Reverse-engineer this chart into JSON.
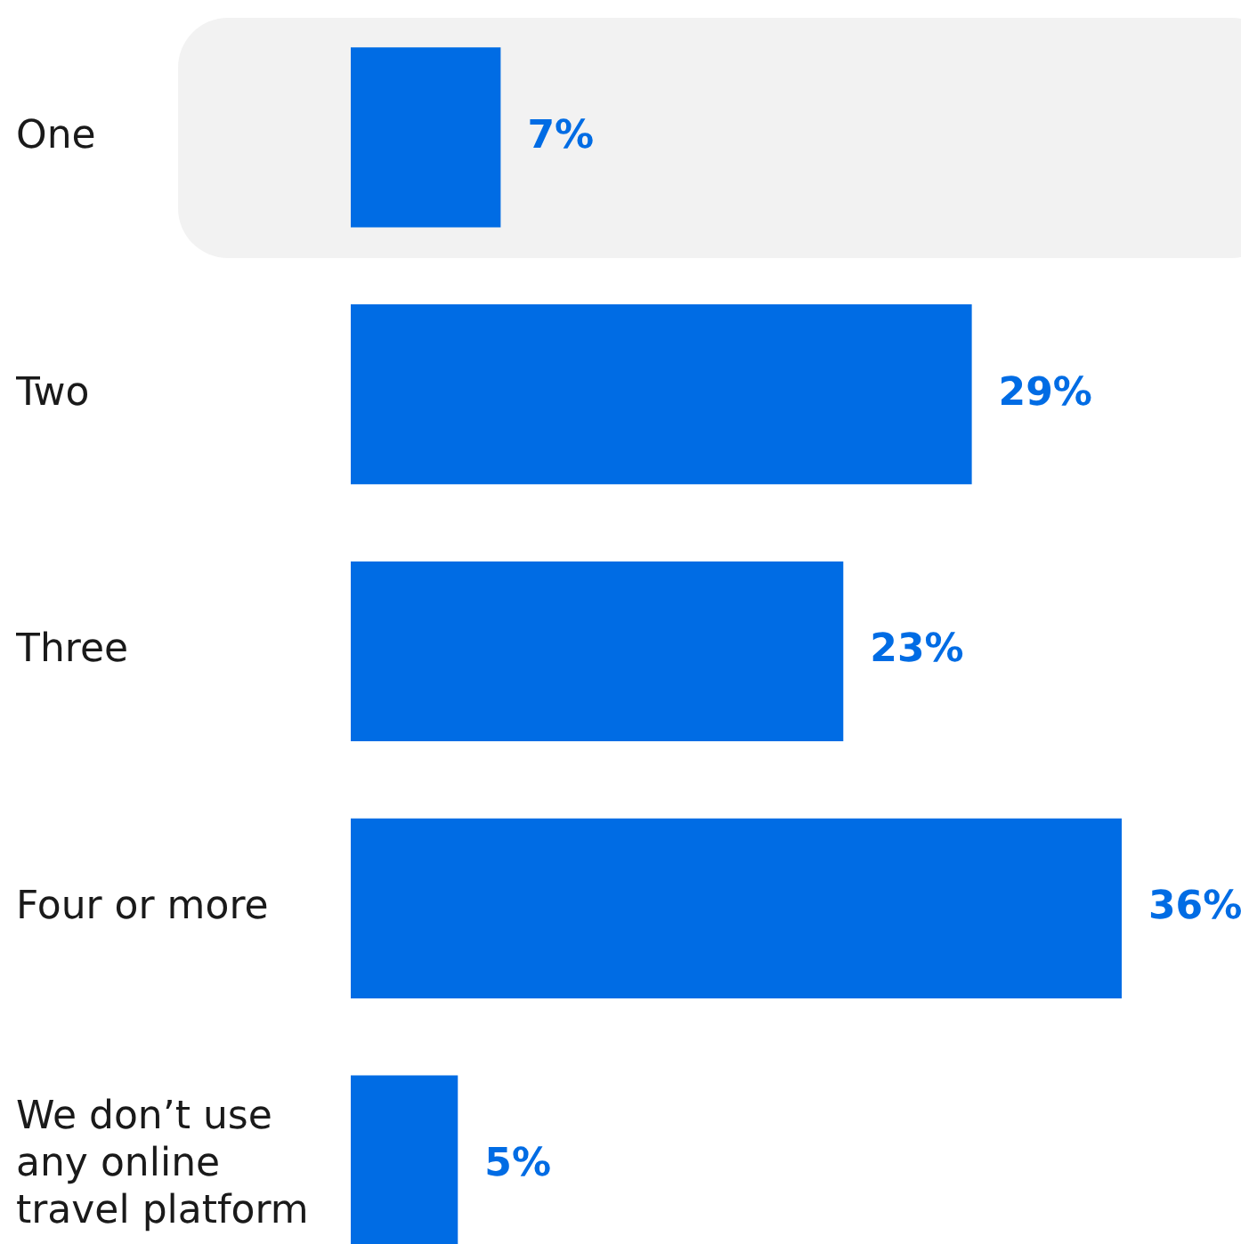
{
  "chart_data": {
    "type": "bar",
    "orientation": "horizontal",
    "categories": [
      "One",
      "Two",
      "Three",
      "Four or more",
      "We don’t use any online travel platform"
    ],
    "values": [
      7,
      29,
      23,
      36,
      5
    ],
    "value_labels": [
      "7%",
      "29%",
      "23%",
      "36%",
      "5%"
    ],
    "color": "#006ce4",
    "tick_labels": "y"
  }
}
